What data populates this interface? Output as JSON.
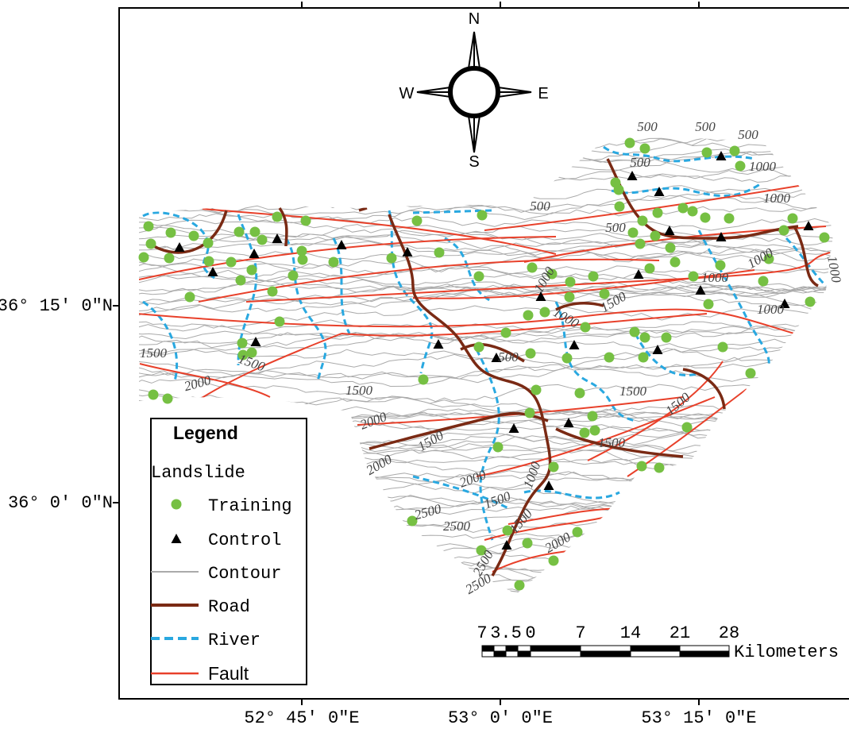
{
  "compass": {
    "north": "N",
    "south": "S",
    "west": "W",
    "east": "E"
  },
  "coordinates": {
    "latitude": [
      "36° 15′ 0″N",
      "36° 0′ 0″N"
    ],
    "longitude": [
      "52° 45′ 0″E",
      "53° 0′ 0″E",
      "53° 15′ 0″E"
    ]
  },
  "contour_labels": [
    "500",
    "500",
    "500",
    "500",
    "1000",
    "1000",
    "500",
    "500",
    "1000",
    "1000",
    "1000",
    "1000",
    "1500",
    "1000",
    "1000",
    "500",
    "1500",
    "1500",
    "2000",
    "1500",
    "2000",
    "1500",
    "1500",
    "1500",
    "1500",
    "2000",
    "2000",
    "1000",
    "1500",
    "2500",
    "1500",
    "2500",
    "2000",
    "2500",
    "2500"
  ],
  "legend": {
    "title": "Legend",
    "group": "Landslide",
    "items": [
      "Training",
      "Control",
      "Contour",
      "Road",
      "River",
      "Fault"
    ]
  },
  "scale_bar": {
    "labels": [
      "7",
      "3.5",
      "0",
      "7",
      "14",
      "21",
      "28"
    ],
    "unit": "Kilometers"
  }
}
